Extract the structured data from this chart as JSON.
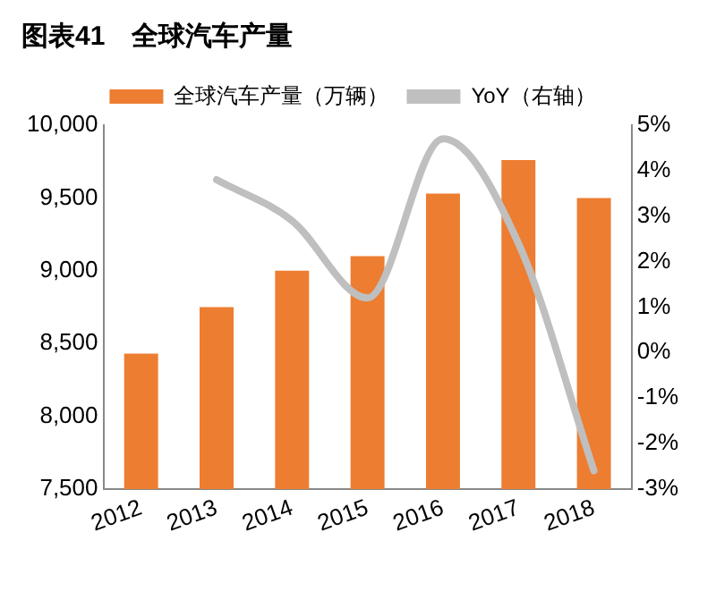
{
  "chart_data": {
    "type": "bar",
    "title": "图表41　全球汽车产量",
    "categories": [
      "2012",
      "2013",
      "2014",
      "2015",
      "2016",
      "2017",
      "2018"
    ],
    "series": [
      {
        "name": "全球汽车产量（万辆）",
        "color": "#ed7d31",
        "values": [
          8430,
          8750,
          9000,
          9100,
          9530,
          9760,
          9500
        ]
      },
      {
        "name": "YoY（右轴）",
        "type": "line",
        "axis": "y2",
        "color": "#bfbfbf",
        "values": [
          null,
          3.8,
          2.9,
          1.2,
          4.7,
          2.4,
          -2.6
        ]
      }
    ],
    "ylim": [
      7500,
      10000
    ],
    "yticks": [
      {
        "value": 7500,
        "label": "7,500"
      },
      {
        "value": 8000,
        "label": "8,000"
      },
      {
        "value": 8500,
        "label": "8,500"
      },
      {
        "value": 9000,
        "label": "9,000"
      },
      {
        "value": 9500,
        "label": "9,500"
      },
      {
        "value": 10000,
        "label": "10,000"
      }
    ],
    "y2lim": [
      -3,
      5
    ],
    "y2ticks": [
      {
        "value": -3,
        "label": "-3%"
      },
      {
        "value": -2,
        "label": "-2%"
      },
      {
        "value": -1,
        "label": "-1%"
      },
      {
        "value": 0,
        "label": "0%"
      },
      {
        "value": 1,
        "label": "1%"
      },
      {
        "value": 2,
        "label": "2%"
      },
      {
        "value": 3,
        "label": "3%"
      },
      {
        "value": 4,
        "label": "4%"
      },
      {
        "value": 5,
        "label": "5%"
      }
    ],
    "grid": false,
    "legend": "top",
    "marker": "none"
  }
}
